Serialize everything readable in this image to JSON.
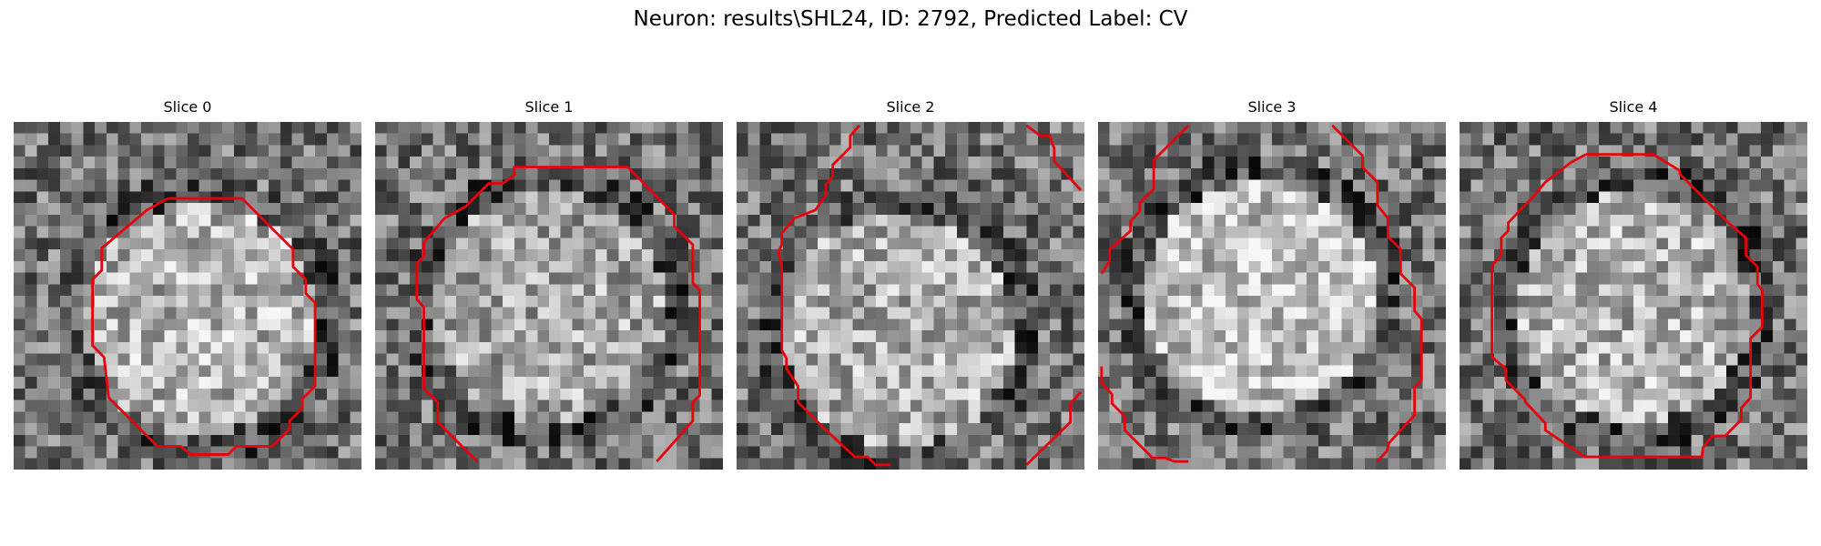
{
  "figure": {
    "title": "Neuron: results\\SHL24, ID: 2792, Predicted Label: CV"
  },
  "panels": [
    {
      "title": "Slice 0",
      "seed": 11
    },
    {
      "title": "Slice 1",
      "seed": 23
    },
    {
      "title": "Slice 2",
      "seed": 37
    },
    {
      "title": "Slice 3",
      "seed": 51
    },
    {
      "title": "Slice 4",
      "seed": 67
    }
  ],
  "colors": {
    "contour": "#e8000b",
    "text": "#000000"
  }
}
